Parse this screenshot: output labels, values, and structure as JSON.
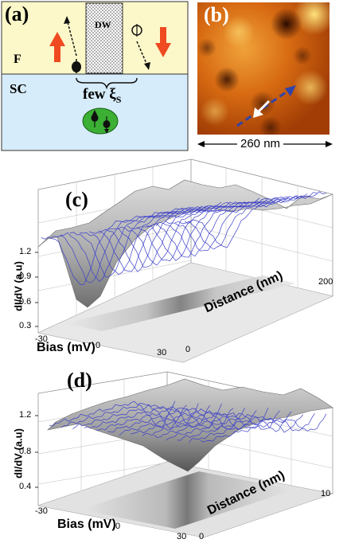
{
  "panel_a": {
    "label": "(a)",
    "ferromagnet_label": "F",
    "superconductor_label": "SC",
    "domain_wall_label": "DW",
    "coherence_label": "few ξ",
    "coherence_subscript": "S"
  },
  "panel_b": {
    "label": "(b)",
    "scale_text": "260 nm"
  },
  "panel_c": {
    "label": "(c)",
    "z_label": "dI/dV (a.u)",
    "x_label": "Bias (mV)",
    "y_label": "Distance (nm)",
    "z_ticks": [
      "1.2",
      "0.9",
      "0.6",
      "0.3"
    ],
    "x_ticks": [
      "-30",
      "0",
      "30"
    ],
    "y_ticks": [
      "0",
      "200"
    ]
  },
  "panel_d": {
    "label": "(d)",
    "z_label": "dI/dV (a.u)",
    "x_label": "Bias (mV)",
    "y_label": "Distance (nm)",
    "z_ticks": [
      "1.2",
      "0.8",
      "0.4"
    ],
    "x_ticks": [
      "-30",
      "0",
      "30"
    ],
    "y_ticks": [
      "0",
      "10"
    ]
  }
}
